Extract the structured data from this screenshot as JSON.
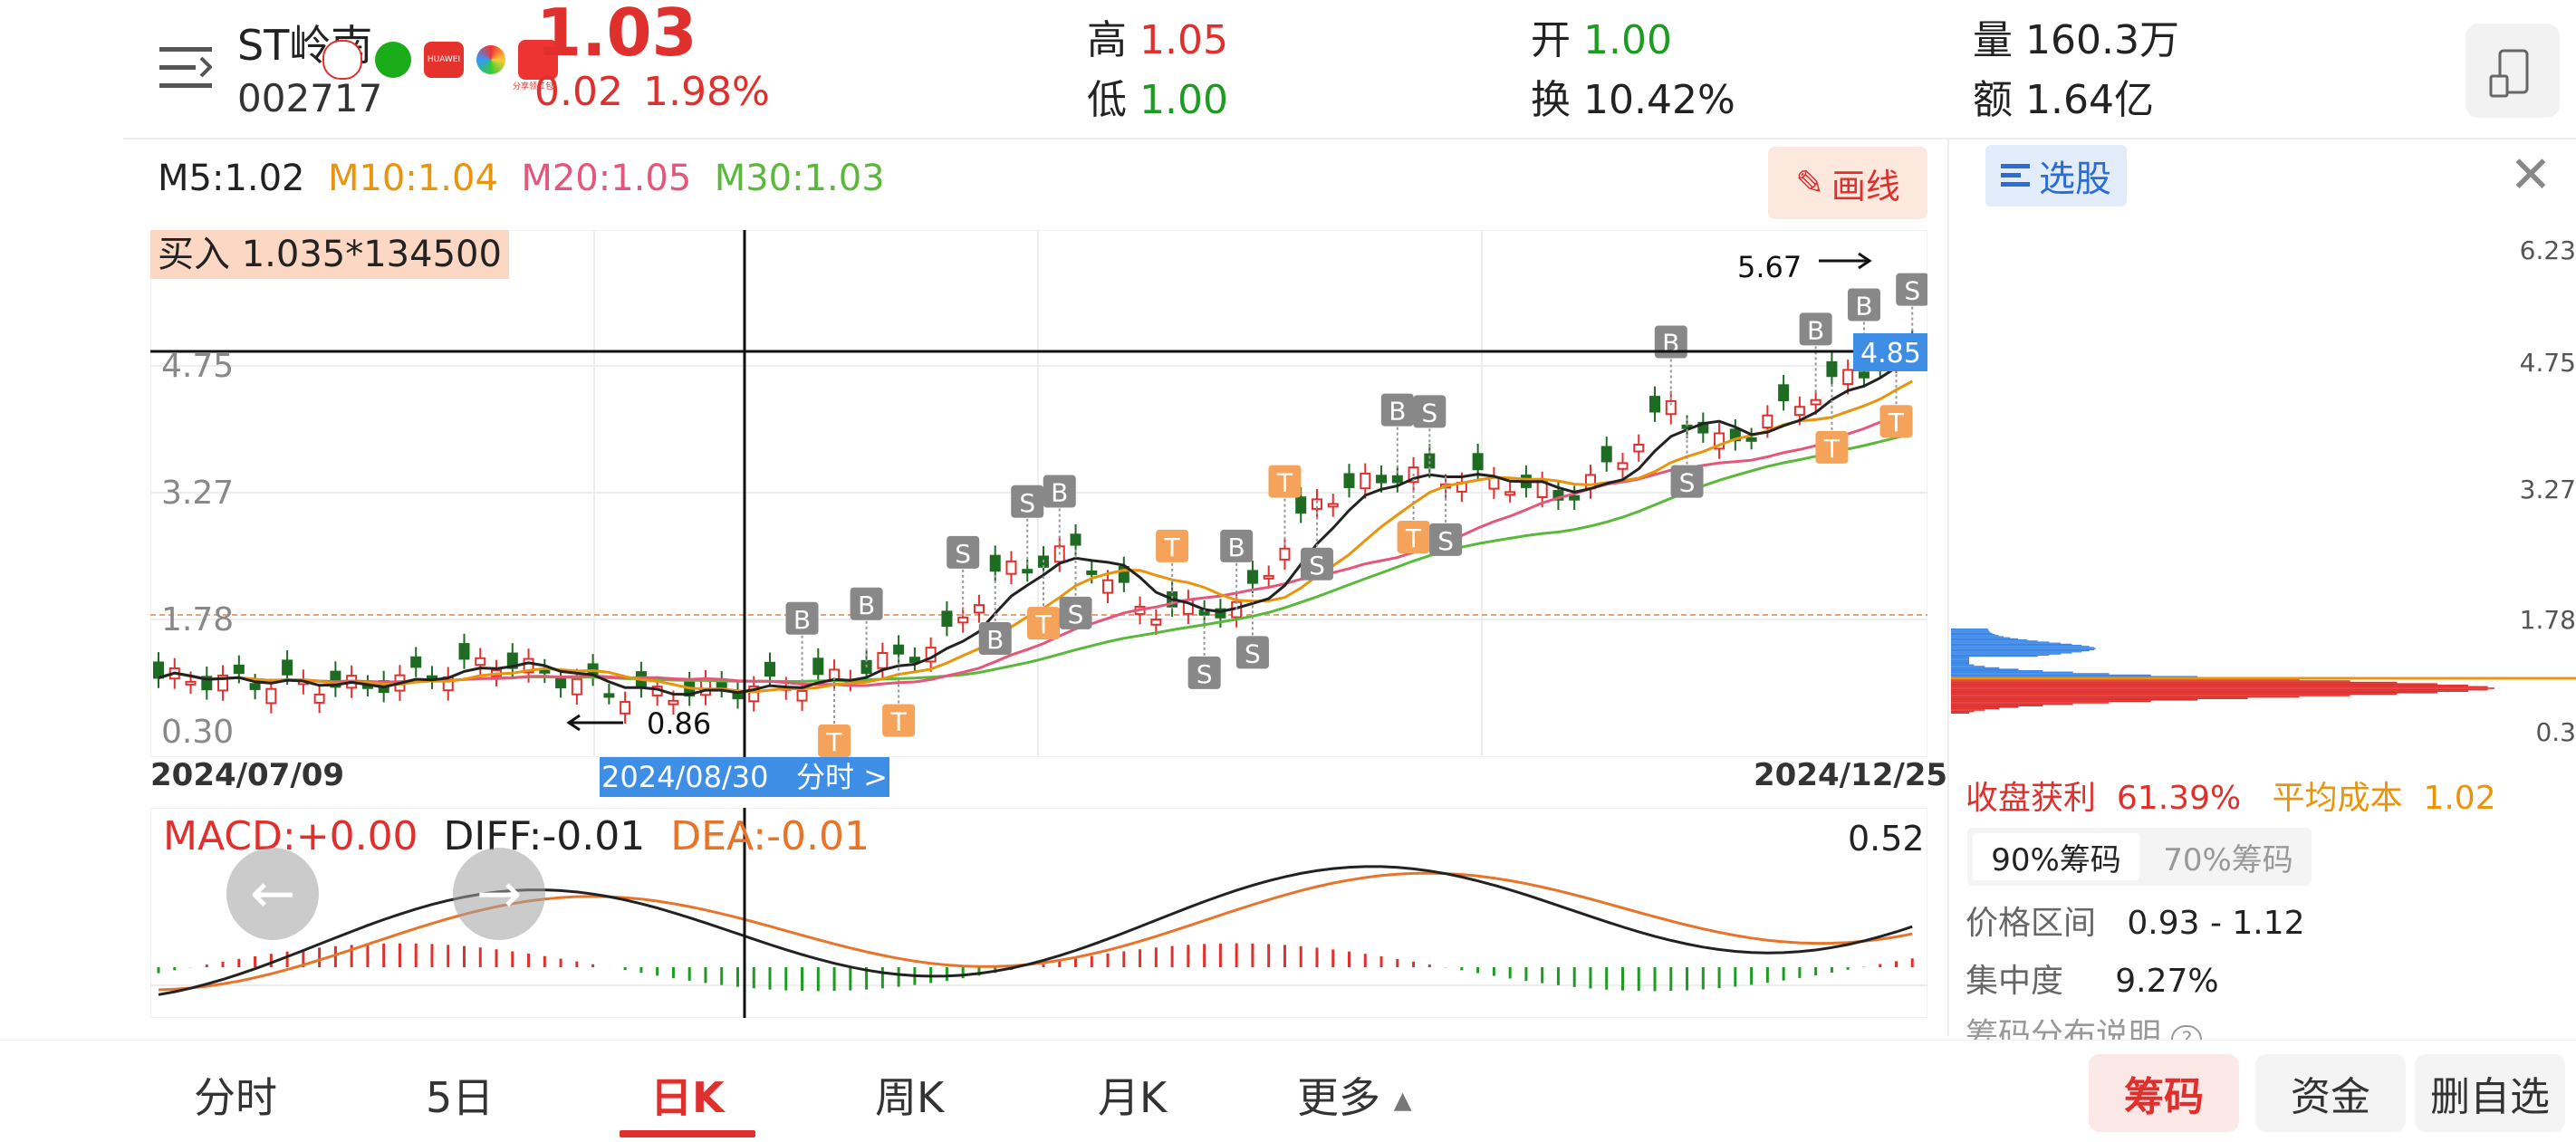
{
  "header": {
    "menu_icon": "menu-icon",
    "stock_name": "ST岭南",
    "stock_code": "002717",
    "price": "1.03",
    "change": "0.02",
    "change_pct": "1.98%",
    "high_label": "高",
    "high_value": "1.05",
    "low_label": "低",
    "low_value": "1.00",
    "open_label": "开",
    "open_value": "1.00",
    "turnover_label": "换",
    "turnover_value": "10.42%",
    "volume_label": "量",
    "volume_value": "160.3万",
    "amount_label": "额",
    "amount_value": "1.64亿",
    "share_icons": [
      "weibo-icon",
      "wechat-icon",
      "huawei-icon",
      "moments-icon",
      "gift-icon"
    ],
    "huawei_text": "HUAWEI",
    "gift_text": "分享领红包",
    "phone_icon": "phone-icon",
    "colors": {
      "up": "#e0302e",
      "down": "#1e9b22"
    }
  },
  "chart": {
    "ma_labels": {
      "m5": "M5:1.02",
      "m10": "M10:1.04",
      "m20": "M20:1.05",
      "m30": "M30:1.03"
    },
    "draw_button": "画线",
    "buy_label": "买入 1.035*134500",
    "y_axis_ticks": [
      "4.75",
      "3.27",
      "1.78",
      "0.30"
    ],
    "start_date": "2024/07/09",
    "end_date": "2024/12/25",
    "crosshair_date": "2024/08/30",
    "crosshair_link": "分时 >",
    "crosshair_price": "4.85",
    "low_annotation": "0.86",
    "high_annotation": "5.67",
    "marker_letters": [
      "B",
      "T",
      "S"
    ],
    "colors": {
      "ma5": "#222222",
      "ma10": "#e8940c",
      "ma20": "#e4567a",
      "ma30": "#5ab83a",
      "marker_grey": "#888888",
      "marker_orange": "#f5a35a"
    }
  },
  "macd": {
    "macd_label": "MACD:+0.00",
    "diff_label": "DIFF:-0.01",
    "dea_label": "DEA:-0.01",
    "max_label": "0.52",
    "left_arrow_icon": "arrow-left-icon",
    "right_arrow_icon": "arrow-right-icon"
  },
  "right_panel": {
    "select_stock": "选股",
    "select_icon": "list-icon",
    "close_icon": "close-icon",
    "axis_ticks": [
      "6.23",
      "4.75",
      "3.27",
      "1.78",
      "0.3"
    ],
    "profit_label": "收盘获利",
    "profit_value": "61.39%",
    "avg_cost_label": "平均成本",
    "avg_cost_value": "1.02",
    "tab_90": "90%筹码",
    "tab_70": "70%筹码",
    "price_range_label": "价格区间",
    "price_range_value": "0.93 - 1.12",
    "concentration_label": "集中度",
    "concentration_value": "9.27%",
    "explain_label": "筹码分布说明",
    "help_icon": "question-icon"
  },
  "bottom_nav": {
    "tabs": [
      "分时",
      "5日",
      "日K",
      "周K",
      "月K",
      "更多"
    ],
    "active_tab": "日K",
    "more_icon": "caret-up-icon",
    "btn_chips": "筹码",
    "btn_funds": "资金",
    "btn_remove": "删自选"
  }
}
